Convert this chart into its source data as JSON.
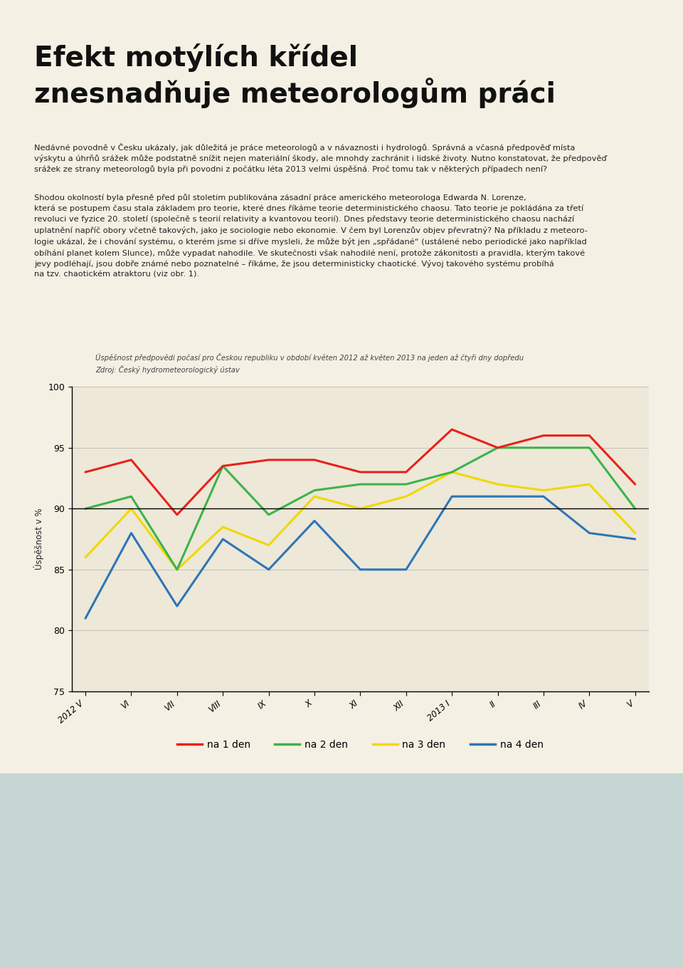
{
  "title_line1": "Efekt motýlích křídel",
  "title_line2": "znesnadňuje meteorologům práci",
  "paragraph1": "Nedávné povodně v Česku ukázaly, jak důležitá je práce meteorologů a v návaznosti i hydrologů. Správná a včasná předpověď místa výskytu a úhrňů srážek může podstatně snížit nejen materiální škody, ale mnohdy zachránit i lidské životy. Nutno konstatovat, že předpověď srážek ze strany meteorologů byla při povodni z počátku léta 2013 velmi úspěšná. Proč tomu tak v některých případech není?",
  "paragraph2": "Shodou okolností byla přesně před půl stoletim publikována zásadní práce amerického meteorologa Edwarda N. Lorenze, která se postupem času stala základem pro teorie, které dnes říkáme teorie deterministického chaosu. Tato teorie je pokládána za třetí revoluci ve fyzice 20. století (společně s teorií relativity a kvantovou teorií). Dnes představy teorie deterministického chaosu nachází uplatnění napříč obory včetně takových, jako je sociologie nebo ekonomie. V čem byl Lorenzův objev převratný? Na příkladu z meteoro-logie ukázal, že i chování systému, o kterém jsme si dříve mysleli, že může být jen „spřádané“ (ustálené nebo periodické jako například obíhání planet kolem Slunce), může vypadat nahodile. Ve skutečnosti však nahodilé není, protože zákonitosti a pravidla, kterým takové jevy podléhají, jsou dobře známé nebo poznatelné – říkáme, že jsou deterministicky chaotické. Vývoj takového systému probíhá na tzv. chaotickém atraktoru (viz obr. 1).",
  "chart_title": "Úspěšnost předpovědi počasí pro Českou republiku v období květen 2012 až květen 2013 na jeden až čtyři dny dopředu",
  "chart_source": "Zdroj: Český hydrometeorologický ústav",
  "ylabel": "Úspěšnost v %",
  "xlabels": [
    "2012 V",
    "VI",
    "VII",
    "VIII",
    "IX",
    "X",
    "XI",
    "XII",
    "2013 I",
    "II",
    "III",
    "IV",
    "V"
  ],
  "ylim": [
    75,
    100
  ],
  "yticks": [
    75,
    80,
    85,
    90,
    95,
    100
  ],
  "data_1day": [
    93.0,
    94.0,
    89.5,
    93.5,
    94.0,
    94.0,
    93.0,
    93.0,
    96.5,
    95.0,
    96.0,
    96.0,
    92.0
  ],
  "data_2day": [
    90.0,
    91.0,
    85.0,
    93.5,
    89.5,
    91.5,
    92.0,
    92.0,
    93.0,
    95.0,
    95.0,
    95.0,
    90.0
  ],
  "data_3day": [
    86.0,
    90.0,
    85.0,
    88.5,
    87.0,
    91.0,
    90.0,
    91.0,
    93.0,
    92.0,
    91.5,
    92.0,
    88.0
  ],
  "data_4day": [
    81.0,
    88.0,
    82.0,
    87.5,
    85.0,
    89.0,
    85.0,
    85.0,
    91.0,
    91.0,
    91.0,
    88.0,
    87.5
  ],
  "color_1day": "#e8211a",
  "color_2day": "#3db34a",
  "color_3day": "#f0d800",
  "color_4day": "#2e75b6",
  "legend_labels": [
    "na 1 den",
    "na 2 den",
    "na 3 den",
    "na 4 den"
  ],
  "bg_color": "#f5f0e4",
  "chart_bg": "#ede8d8",
  "text_color": "#111111",
  "line_width": 2.2,
  "grid_color": "#999999",
  "grid_alpha": 0.5,
  "title_fontsize": 28,
  "body_fontsize": 8.2,
  "chart_title_fontsize": 7.2,
  "ylabel_fontsize": 8.5,
  "legend_fontsize": 10,
  "tick_fontsize": 8.5
}
